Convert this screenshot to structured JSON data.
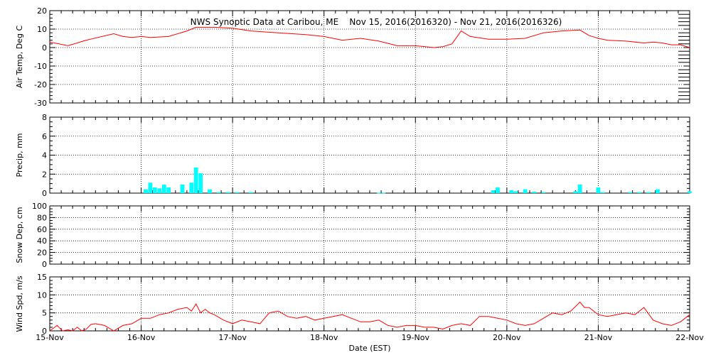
{
  "chart_data": {
    "type": "multi-panel time series",
    "title": "NWS Synoptic Data at Caribou, ME    Nov 15, 2016(2016320) - Nov 21, 2016(2016326)",
    "xlabel": "Date (EST)",
    "x_unit": "days since Nov 15",
    "x_tick_labels": [
      "15-Nov",
      "16-Nov",
      "17-Nov",
      "18-Nov",
      "19-Nov",
      "20-Nov",
      "21-Nov",
      "22-Nov"
    ],
    "xlim": [
      0,
      7
    ],
    "colors": {
      "line": "#ff0000",
      "bar": "#00ffff",
      "axis": "#000000"
    },
    "panels": [
      {
        "type": "line",
        "ylabel": "Air Temp, Deg C",
        "ylim": [
          -30,
          20
        ],
        "yticks": [
          20,
          10,
          0,
          -10,
          -20,
          -30
        ],
        "minor_tick_step": 2,
        "right_minor_ticks": true,
        "x": [
          0,
          0.2,
          0.4,
          0.7,
          0.8,
          0.9,
          1.0,
          1.1,
          1.3,
          1.5,
          1.6,
          1.8,
          2.0,
          2.2,
          2.5,
          2.8,
          3.0,
          3.2,
          3.4,
          3.6,
          3.8,
          4.0,
          4.2,
          4.3,
          4.4,
          4.5,
          4.6,
          4.8,
          5.0,
          5.2,
          5.4,
          5.6,
          5.8,
          5.9,
          6.0,
          6.1,
          6.3,
          6.5,
          6.6,
          6.7,
          6.8,
          6.9,
          7.0
        ],
        "y": [
          3,
          1,
          4,
          7.5,
          6,
          5.5,
          6,
          5.5,
          6,
          9,
          11,
          11,
          10.5,
          9,
          8,
          7,
          6,
          4,
          5,
          3.5,
          1,
          1,
          0,
          0.5,
          2,
          9,
          6,
          4.5,
          4.5,
          5,
          8,
          9,
          9.5,
          6.5,
          5,
          4,
          3.5,
          2.5,
          3,
          2.5,
          1.5,
          1.5,
          0
        ]
      },
      {
        "type": "bar",
        "ylabel": "Precip, mm",
        "ylim": [
          0,
          8
        ],
        "yticks": [
          8,
          6,
          4,
          2,
          0
        ],
        "minor_tick_step": 0.5,
        "bar_width": 0.045,
        "x": [
          1.05,
          1.1,
          1.15,
          1.2,
          1.25,
          1.3,
          1.45,
          1.55,
          1.6,
          1.65,
          1.75,
          1.85,
          1.95,
          2.05,
          2.2,
          3.6,
          3.65,
          4.85,
          4.9,
          5.05,
          5.1,
          5.2,
          5.3,
          5.4,
          5.75,
          5.8,
          6.0,
          6.05,
          6.35,
          6.45,
          6.55,
          6.65,
          7.0
        ],
        "values": [
          0.4,
          1.1,
          0.6,
          0.5,
          0.9,
          0.6,
          0.9,
          1.1,
          2.7,
          2.1,
          0.4,
          0.1,
          0.1,
          0.1,
          0.1,
          0.05,
          0.05,
          0.3,
          0.6,
          0.3,
          0.2,
          0.4,
          0.15,
          0.1,
          0.2,
          0.9,
          0.6,
          0.1,
          0.1,
          0.1,
          0.1,
          0.4,
          0.2
        ]
      },
      {
        "type": "line",
        "ylabel": "Snow Dep, cm",
        "ylim": [
          0,
          100
        ],
        "yticks": [
          100,
          80,
          60,
          40,
          20,
          0
        ],
        "minor_tick_step": 5,
        "x": [],
        "y": []
      },
      {
        "type": "line",
        "ylabel": "Wind Spd, m/s",
        "ylim": [
          0,
          15
        ],
        "yticks": [
          15,
          10,
          5,
          0
        ],
        "minor_tick_step": 1,
        "x": [
          0,
          0.08,
          0.14,
          0.2,
          0.25,
          0.3,
          0.35,
          0.4,
          0.45,
          0.5,
          0.6,
          0.7,
          0.8,
          0.9,
          1.0,
          1.1,
          1.2,
          1.3,
          1.4,
          1.5,
          1.55,
          1.6,
          1.65,
          1.7,
          1.75,
          1.8,
          1.9,
          2.0,
          2.1,
          2.2,
          2.3,
          2.4,
          2.5,
          2.6,
          2.7,
          2.8,
          2.9,
          3.0,
          3.1,
          3.2,
          3.3,
          3.4,
          3.5,
          3.6,
          3.7,
          3.8,
          3.9,
          4.0,
          4.1,
          4.2,
          4.3,
          4.4,
          4.5,
          4.6,
          4.7,
          4.8,
          4.9,
          5.0,
          5.1,
          5.2,
          5.3,
          5.4,
          5.5,
          5.6,
          5.7,
          5.8,
          5.85,
          5.9,
          6.0,
          6.1,
          6.2,
          6.3,
          6.4,
          6.5,
          6.6,
          6.7,
          6.8,
          6.9,
          7.0
        ],
        "y": [
          0,
          1.5,
          0,
          0.3,
          0,
          1,
          0,
          0.5,
          1.8,
          2,
          1.5,
          0,
          1.5,
          2,
          3.5,
          3.5,
          4.5,
          5,
          6,
          6.5,
          5.5,
          7.5,
          5,
          6,
          5,
          4.5,
          3,
          2,
          3,
          2.5,
          2,
          5,
          5.5,
          4,
          3.5,
          4,
          3,
          3.5,
          4,
          4.5,
          3.5,
          2.5,
          2.5,
          3,
          1.5,
          1,
          1.5,
          1.5,
          1,
          1,
          0.5,
          1.5,
          2,
          1.5,
          4,
          4,
          3.5,
          3,
          2,
          1.5,
          2,
          3.5,
          5,
          4.5,
          5.5,
          8,
          6.5,
          6.5,
          4.5,
          4,
          4.5,
          5,
          4.5,
          6.5,
          3,
          2,
          1.5,
          2.5,
          4.5
        ]
      }
    ]
  }
}
